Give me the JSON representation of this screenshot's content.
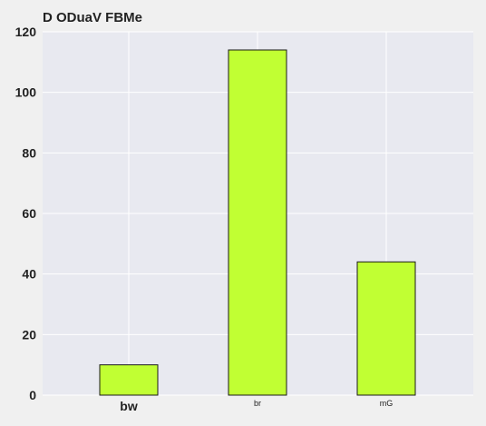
{
  "chart_data": {
    "type": "bar",
    "title": "D ODuaV FBMe",
    "xlabel": "",
    "ylabel": "",
    "categories": [
      "bw",
      "br",
      "mG"
    ],
    "values": [
      10,
      114,
      44
    ],
    "ylim": [
      0,
      120
    ],
    "yticks": [
      "0",
      "20",
      "40",
      "60",
      "80",
      "100",
      "120"
    ],
    "grid": true,
    "legend": "none",
    "colors": {
      "bar_fill": "#c1ff33",
      "bar_stroke": "#1a1a1a",
      "plot_background": "#e8e9f0",
      "grid": "#ffffff",
      "page_background": "#f0f0f0"
    }
  }
}
